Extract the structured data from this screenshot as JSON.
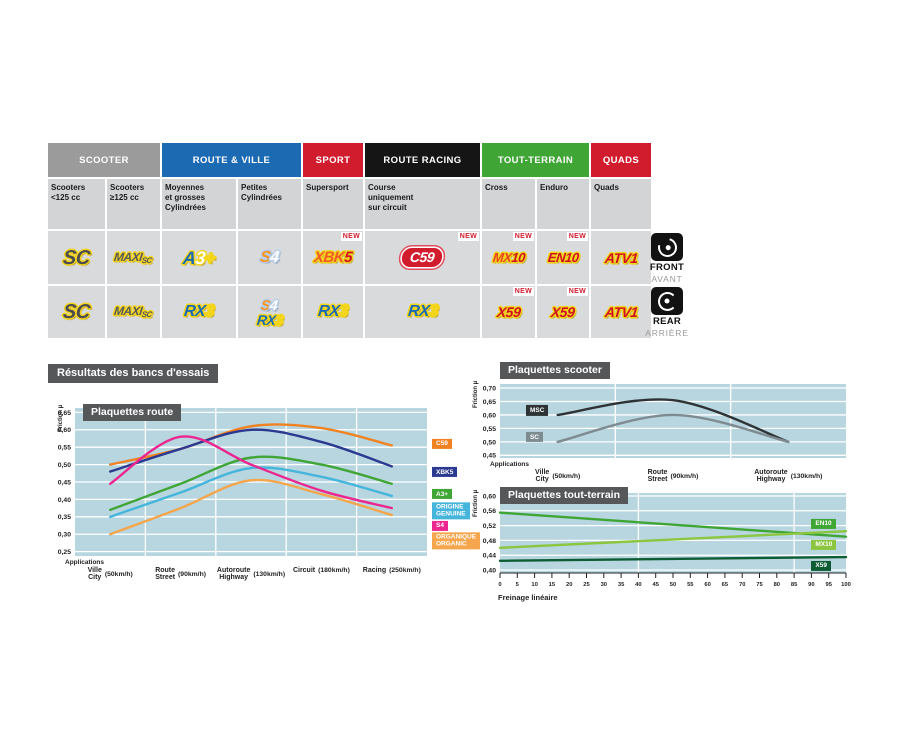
{
  "page": {
    "section_title": "Résultats des bancs d'essais",
    "new_badge": "NEW"
  },
  "table": {
    "categories": [
      {
        "label": "SCOOTER",
        "color": "#9b9b9b",
        "span": 2
      },
      {
        "label": "ROUTE & VILLE",
        "color": "#1b6ab2",
        "span": 2
      },
      {
        "label": "SPORT",
        "color": "#d11c2e",
        "span": 1
      },
      {
        "label": "ROUTE RACING",
        "color": "#151515",
        "span": 1
      },
      {
        "label": "TOUT-TERRAIN",
        "color": "#3fa535",
        "span": 2
      },
      {
        "label": "QUADS",
        "color": "#d11c2e",
        "span": 1
      }
    ],
    "subheaders": [
      {
        "lines": [
          "Scooters",
          "<125 cc"
        ]
      },
      {
        "lines": [
          "Scooters",
          "≥125 cc"
        ]
      },
      {
        "lines": [
          "Moyennes",
          "et grosses",
          "Cylindrées"
        ]
      },
      {
        "lines": [
          "Petites",
          "Cylindrées"
        ]
      },
      {
        "lines": [
          "Supersport"
        ]
      },
      {
        "lines": [
          "Course",
          "uniquement",
          "sur circuit"
        ]
      },
      {
        "lines": [
          "Cross"
        ]
      },
      {
        "lines": [
          "Enduro"
        ]
      },
      {
        "lines": [
          "Quads"
        ]
      }
    ],
    "logos": {
      "sc": {
        "cls": "lg-sc",
        "parts": [
          {
            "t": "SC",
            "c": "#4e4e50"
          }
        ]
      },
      "maxisc": {
        "cls": "lg-maxisc",
        "parts": [
          {
            "t": "MAXI",
            "c": "#58585a"
          },
          {
            "t": "SC",
            "c": "#58585a",
            "sub": true
          }
        ]
      },
      "a3": {
        "cls": "lg-a3",
        "parts": [
          {
            "t": "A",
            "c": "#1b6ab2"
          },
          {
            "t": "3",
            "c": "#ffffff"
          },
          {
            "t": "+",
            "c": "#f3d51c"
          }
        ]
      },
      "s4": {
        "cls": "lg-s4",
        "parts": [
          {
            "t": "S",
            "c": "#f7941d"
          },
          {
            "t": "4",
            "c": "#ffffff"
          }
        ]
      },
      "xbk5": {
        "cls": "lg-xbk5",
        "parts": [
          {
            "t": "XBK",
            "c": "#f15a24"
          },
          {
            "t": "5",
            "c": "#cf1021"
          }
        ]
      },
      "c59": {
        "cls": "lg-c59",
        "parts": [
          {
            "t": "C59",
            "c": "#ffffff"
          }
        ]
      },
      "rx3": {
        "cls": "lg-rx3",
        "parts": [
          {
            "t": "RX",
            "c": "#1b6ab2"
          },
          {
            "t": "3",
            "c": "#f3d51c"
          }
        ]
      },
      "mx10": {
        "cls": "lg-mx10",
        "parts": [
          {
            "t": "MX",
            "c": "#e8431f"
          },
          {
            "t": "10",
            "c": "#cf1021"
          }
        ]
      },
      "en10": {
        "cls": "lg-en10",
        "parts": [
          {
            "t": "EN10",
            "c": "#cf1021"
          }
        ]
      },
      "x59": {
        "cls": "lg-x59",
        "parts": [
          {
            "t": "X59",
            "c": "#cf1021"
          }
        ]
      },
      "atv1": {
        "cls": "lg-atv1",
        "parts": [
          {
            "t": "ATV1",
            "c": "#cf1021"
          }
        ]
      }
    },
    "rows": [
      {
        "id": "front",
        "cells": [
          {
            "products": [
              "sc"
            ]
          },
          {
            "products": [
              "maxisc"
            ]
          },
          {
            "products": [
              "a3"
            ]
          },
          {
            "products": [
              "s4"
            ]
          },
          {
            "products": [
              "xbk5"
            ],
            "new": true
          },
          {
            "products": [
              "c59"
            ],
            "new": true
          },
          {
            "products": [
              "mx10"
            ],
            "new": true
          },
          {
            "products": [
              "en10"
            ],
            "new": true
          },
          {
            "products": [
              "atv1"
            ]
          }
        ]
      },
      {
        "id": "rear",
        "cells": [
          {
            "products": [
              "sc"
            ]
          },
          {
            "products": [
              "maxisc"
            ]
          },
          {
            "products": [
              "rx3"
            ]
          },
          {
            "products": [
              "s4",
              "rx3"
            ]
          },
          {
            "products": [
              "rx3"
            ]
          },
          {
            "products": [
              "rx3"
            ]
          },
          {
            "products": [
              "x59"
            ],
            "new": true
          },
          {
            "products": [
              "x59"
            ],
            "new": true
          },
          {
            "products": [
              "atv1"
            ]
          }
        ]
      }
    ]
  },
  "side": {
    "front": {
      "label": "FRONT",
      "sub": "AVANT"
    },
    "rear": {
      "label": "REAR",
      "sub": "ARRIÈRE"
    }
  },
  "chart_data": [
    {
      "id": "route",
      "type": "line",
      "title": "Plaquettes route",
      "ylabel": "Friction µ",
      "applications_label": "Applications",
      "ylim": [
        0.25,
        0.65
      ],
      "ystep": 0.05,
      "grid": true,
      "legend_position": "right",
      "categories": [
        {
          "lines": [
            "Ville",
            "City"
          ],
          "speed": "(50km/h)"
        },
        {
          "lines": [
            "Route",
            "Street"
          ],
          "speed": "(90km/h)"
        },
        {
          "lines": [
            "Autoroute",
            "Highway"
          ],
          "speed": "(130km/h)"
        },
        {
          "lines": [
            "Circuit"
          ],
          "speed": "(180km/h)"
        },
        {
          "lines": [
            "Racing"
          ],
          "speed": "(250km/h)"
        }
      ],
      "series": [
        {
          "name": "C59",
          "label_lines": [
            "C59"
          ],
          "color": "#f08221",
          "values": [
            0.5,
            0.545,
            0.61,
            0.605,
            0.555
          ],
          "legend_y": 0.56
        },
        {
          "name": "XBK5",
          "label_lines": [
            "XBK5"
          ],
          "color": "#2b3990",
          "values": [
            0.48,
            0.545,
            0.6,
            0.565,
            0.495
          ],
          "legend_y": 0.478
        },
        {
          "name": "A3+",
          "label_lines": [
            "A3+"
          ],
          "color": "#3fa535",
          "values": [
            0.37,
            0.445,
            0.52,
            0.5,
            0.445
          ],
          "legend_y": 0.415
        },
        {
          "name": "ORIGINE / GENUINE",
          "label_lines": [
            "ORIGINE",
            "GENUINE"
          ],
          "color": "#45b5dc",
          "values": [
            0.35,
            0.42,
            0.49,
            0.465,
            0.41
          ],
          "legend_y": 0.368
        },
        {
          "name": "S4",
          "label_lines": [
            "S4"
          ],
          "color": "#ec268f",
          "values": [
            0.445,
            0.58,
            0.5,
            0.425,
            0.375
          ],
          "legend_y": 0.325
        },
        {
          "name": "ORGANIQUE / ORGANIC",
          "label_lines": [
            "ORGANIQUE",
            "ORGANIC"
          ],
          "color": "#f5a54c",
          "values": [
            0.3,
            0.375,
            0.455,
            0.415,
            0.355
          ],
          "legend_y": 0.282
        }
      ]
    },
    {
      "id": "scooter",
      "type": "line",
      "title": "Plaquettes scooter",
      "ylabel": "Friction µ",
      "applications_label": "Applications",
      "ylim": [
        0.45,
        0.7
      ],
      "ystep": 0.05,
      "grid": true,
      "legend_position": "inline-left",
      "categories": [
        {
          "lines": [
            "Ville",
            "City"
          ],
          "speed": "(50km/h)"
        },
        {
          "lines": [
            "Route",
            "Street"
          ],
          "speed": "(90km/h)"
        },
        {
          "lines": [
            "Autoroute",
            "Highway"
          ],
          "speed": "(130km/h)"
        }
      ],
      "series": [
        {
          "name": "MSC",
          "label_lines": [
            "MSC"
          ],
          "color": "#2e3436",
          "values": [
            0.6,
            0.655,
            0.5
          ],
          "legend_x": 0.075,
          "legend_y": 0.617
        },
        {
          "name": "SC",
          "label_lines": [
            "SC"
          ],
          "color": "#7e8c91",
          "values": [
            0.5,
            0.6,
            0.5
          ],
          "legend_x": 0.075,
          "legend_y": 0.517
        }
      ]
    },
    {
      "id": "tt",
      "type": "line",
      "title": "Plaquettes tout-terrain",
      "ylabel": "Friction µ",
      "xlabel": "Freinage linéaire",
      "ylim": [
        0.4,
        0.6
      ],
      "ystep": 0.04,
      "xlim": [
        0,
        100
      ],
      "xtick_step": 5,
      "grid": true,
      "legend_position": "inline-right",
      "series": [
        {
          "name": "EN10",
          "label_lines": [
            "EN10"
          ],
          "color": "#3fa535",
          "points": [
            [
              0,
              0.555
            ],
            [
              100,
              0.49
            ]
          ],
          "legend_x": 0.9,
          "legend_y": 0.525
        },
        {
          "name": "MX10",
          "label_lines": [
            "MX10"
          ],
          "color": "#8cc63f",
          "points": [
            [
              0,
              0.46
            ],
            [
              100,
              0.505
            ]
          ],
          "legend_x": 0.9,
          "legend_y": 0.468
        },
        {
          "name": "X59",
          "label_lines": [
            "X59"
          ],
          "color": "#0e5c33",
          "points": [
            [
              0,
              0.425
            ],
            [
              100,
              0.435
            ]
          ],
          "legend_x": 0.9,
          "legend_y": 0.411
        }
      ]
    }
  ]
}
